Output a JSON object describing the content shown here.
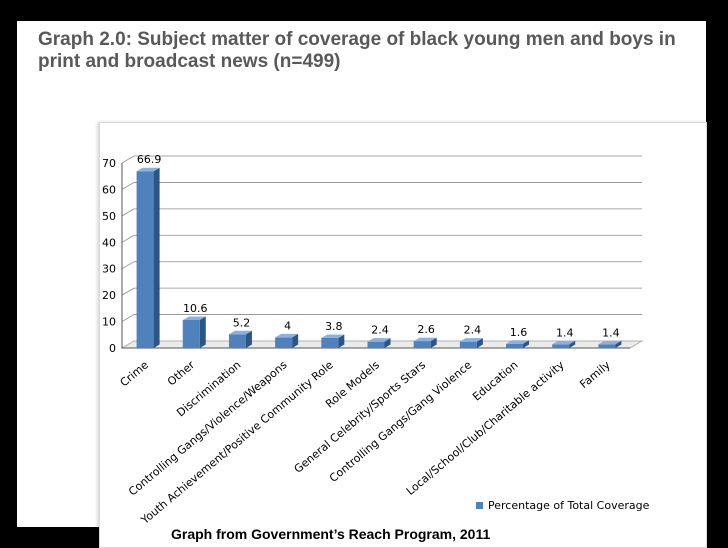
{
  "slide": {
    "title": "Graph 2.0: Subject matter of coverage of black young men and boys in print and broadcast news (n=499)",
    "caption": "Graph from Government’s Reach Program, 2011"
  },
  "colors": {
    "bar_front": "#4f81bd",
    "bar_side": "#2a5585",
    "bar_top": "#8eb0dc",
    "grid": "#8c8c8c",
    "text": "#000000"
  },
  "chart_data": {
    "type": "bar",
    "title": "",
    "xlabel": "",
    "ylabel": "",
    "ylim": [
      0,
      70
    ],
    "yticks": [
      "0",
      "10",
      "20",
      "30",
      "40",
      "50",
      "60",
      "70"
    ],
    "grid": true,
    "legend_position": "bottom-right",
    "categories": [
      "Crime",
      "Other",
      "Discrimination",
      "Controlling Gangs/Violence/Weapons",
      "Youth Achievement/Positive Community Role",
      "Role Models",
      "General Celebrity/Sports Stars",
      "Controlling Gangs/Gang Violence",
      "Education",
      "Local/School/Club/Charitable activity",
      "Family"
    ],
    "series": [
      {
        "name": "Percentage of Total Coverage",
        "values": [
          66.9,
          10.6,
          5.2,
          4,
          3.8,
          2.4,
          2.6,
          2.4,
          1.6,
          1.4,
          1.4
        ],
        "labels": [
          "66.9",
          "10.6",
          "5.2",
          "4",
          "3.8",
          "2.4",
          "2.6",
          "2.4",
          "1.6",
          "1.4",
          "1.4"
        ]
      }
    ]
  }
}
